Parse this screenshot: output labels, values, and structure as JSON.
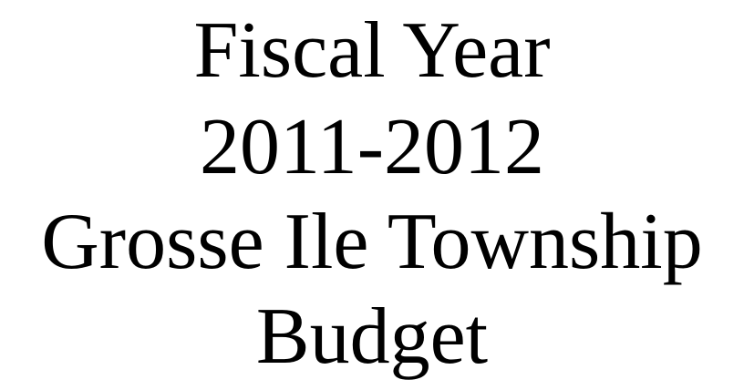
{
  "document": {
    "lines": [
      "Fiscal Year",
      "2011-2012",
      "Grosse Ile Township",
      "Budget"
    ]
  },
  "colors": {
    "background": "#ffffff",
    "text": "#000000"
  }
}
